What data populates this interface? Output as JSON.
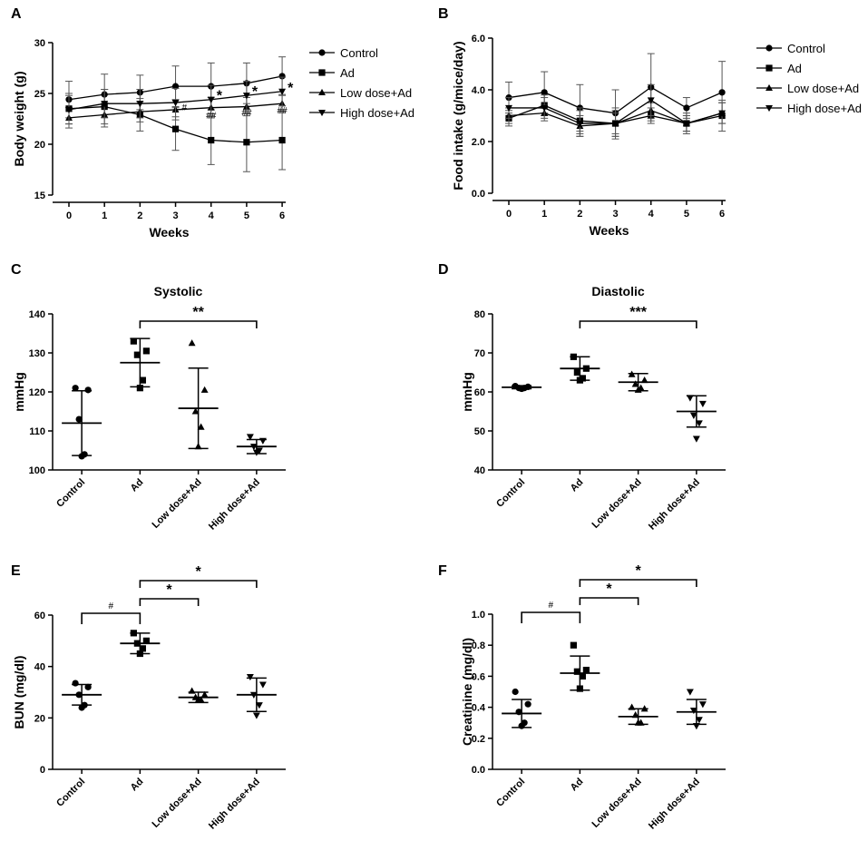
{
  "chart_data": [
    {
      "panel_label": "A",
      "type": "line",
      "title": "",
      "xlabel": "Weeks",
      "ylabel": "Body weight (g)",
      "x": [
        0,
        1,
        2,
        3,
        4,
        5,
        6
      ],
      "x_ticks": [
        "0",
        "1",
        "2",
        "3",
        "4",
        "5",
        "6"
      ],
      "y_ticks": [
        "15",
        "20",
        "25",
        "30"
      ],
      "ylim": [
        15,
        30
      ],
      "legend": "right",
      "series": [
        {
          "name": "Control",
          "marker": "circle",
          "values": [
            24.4,
            24.9,
            25.1,
            25.7,
            25.7,
            26.0,
            26.7
          ],
          "err": [
            1.8,
            2.0,
            1.7,
            2.0,
            2.3,
            2.0,
            1.9
          ]
        },
        {
          "name": "Ad",
          "marker": "square",
          "values": [
            23.5,
            23.7,
            22.9,
            21.5,
            20.4,
            20.2,
            20.4
          ],
          "err": [
            1.5,
            1.7,
            1.6,
            2.1,
            2.4,
            2.9,
            2.9
          ]
        },
        {
          "name": "Low dose+Ad",
          "marker": "triangle-up",
          "values": [
            22.6,
            22.9,
            23.2,
            23.4,
            23.6,
            23.7,
            24.0
          ],
          "err": [
            1.0,
            1.2,
            1.0,
            1.0,
            1.0,
            0.9,
            0.9
          ]
        },
        {
          "name": "High dose+Ad",
          "marker": "triangle-down",
          "values": [
            23.4,
            24.0,
            24.0,
            24.1,
            24.4,
            24.8,
            25.2
          ],
          "err": [
            1.4,
            1.4,
            1.4,
            1.4,
            1.4,
            1.4,
            1.4
          ]
        }
      ],
      "annotations": [
        {
          "x": 3,
          "series": "Ad",
          "text": "#"
        },
        {
          "x": 4,
          "series": "Ad",
          "text": "##"
        },
        {
          "x": 5,
          "series": "Ad",
          "text": "##"
        },
        {
          "x": 6,
          "series": "Ad",
          "text": "##"
        },
        {
          "x": 4,
          "series": "High dose+Ad",
          "text": "*"
        },
        {
          "x": 5,
          "series": "High dose+Ad",
          "text": "*"
        },
        {
          "x": 6,
          "series": "High dose+Ad",
          "text": "*"
        }
      ]
    },
    {
      "panel_label": "B",
      "type": "line",
      "title": "",
      "xlabel": "Weeks",
      "ylabel": "Food intake (g/mice/day)",
      "x": [
        0,
        1,
        2,
        3,
        4,
        5,
        6
      ],
      "x_ticks": [
        "0",
        "1",
        "2",
        "3",
        "4",
        "5",
        "6"
      ],
      "y_ticks": [
        "0.0",
        "2.0",
        "4.0",
        "6.0"
      ],
      "ylim": [
        0,
        6
      ],
      "legend": "right",
      "series": [
        {
          "name": "Control",
          "marker": "circle",
          "values": [
            3.7,
            3.9,
            3.3,
            3.1,
            4.1,
            3.3,
            3.9
          ],
          "err": [
            0.6,
            0.8,
            0.9,
            0.9,
            1.3,
            0.4,
            1.2
          ]
        },
        {
          "name": "Ad",
          "marker": "square",
          "values": [
            2.9,
            3.4,
            2.8,
            2.7,
            3.0,
            2.7,
            3.0
          ],
          "err": [
            0.3,
            0.4,
            0.5,
            0.6,
            0.3,
            0.3,
            0.6
          ]
        },
        {
          "name": "Low dose+Ad",
          "marker": "triangle-up",
          "values": [
            3.0,
            3.1,
            2.6,
            2.7,
            3.2,
            2.7,
            3.1
          ],
          "err": [
            0.3,
            0.3,
            0.4,
            0.4,
            0.3,
            0.3,
            0.4
          ]
        },
        {
          "name": "High dose+Ad",
          "marker": "triangle-down",
          "values": [
            3.3,
            3.3,
            2.7,
            2.7,
            3.6,
            2.7,
            3.1
          ],
          "err": [
            0.4,
            0.4,
            0.5,
            0.5,
            0.6,
            0.4,
            0.4
          ]
        }
      ]
    },
    {
      "panel_label": "C",
      "type": "scatter",
      "title": "Systolic",
      "xlabel": "",
      "ylabel": "mmHg",
      "categories": [
        "Control",
        "Ad",
        "Low dose+Ad",
        "High dose+Ad"
      ],
      "y_ticks": [
        "100",
        "110",
        "120",
        "130",
        "140"
      ],
      "ylim": [
        100,
        140
      ],
      "groups": [
        {
          "name": "Control",
          "marker": "circle",
          "points": [
            121,
            120.5,
            113,
            104,
            103.5
          ],
          "mean": 112,
          "sd": 8.3
        },
        {
          "name": "Ad",
          "marker": "square",
          "points": [
            133,
            130.5,
            129.5,
            123,
            121
          ],
          "mean": 127.5,
          "sd": 6.2
        },
        {
          "name": "Low dose+Ad",
          "marker": "triangle-up",
          "points": [
            132.5,
            120.5,
            115,
            111,
            106
          ],
          "mean": 115.8,
          "sd": 10.3
        },
        {
          "name": "High dose+Ad",
          "marker": "triangle-down",
          "points": [
            108.5,
            107.5,
            106,
            105,
            104.5
          ],
          "mean": 106,
          "sd": 1.8
        }
      ],
      "brackets": [
        {
          "from": "Ad",
          "to": "High dose+Ad",
          "text": "**"
        }
      ]
    },
    {
      "panel_label": "D",
      "type": "scatter",
      "title": "Diastolic",
      "xlabel": "",
      "ylabel": "mmHg",
      "categories": [
        "Control",
        "Ad",
        "Low dose+Ad",
        "High dose+Ad"
      ],
      "y_ticks": [
        "40",
        "50",
        "60",
        "70",
        "80"
      ],
      "ylim": [
        40,
        80
      ],
      "groups": [
        {
          "name": "Control",
          "marker": "circle",
          "points": [
            61.5,
            61.3,
            61,
            61,
            60.8
          ],
          "mean": 61.2,
          "sd": 0.4
        },
        {
          "name": "Ad",
          "marker": "square",
          "points": [
            69,
            66,
            65,
            63.5,
            63
          ],
          "mean": 66,
          "sd": 3
        },
        {
          "name": "Low dose+Ad",
          "marker": "triangle-up",
          "points": [
            64.5,
            63,
            62,
            61,
            60.5
          ],
          "mean": 62.5,
          "sd": 2.2
        },
        {
          "name": "High dose+Ad",
          "marker": "triangle-down",
          "points": [
            58.5,
            57,
            54,
            52,
            48
          ],
          "mean": 55,
          "sd": 4
        }
      ],
      "brackets": [
        {
          "from": "Ad",
          "to": "High dose+Ad",
          "text": "***"
        }
      ]
    },
    {
      "panel_label": "E",
      "type": "scatter",
      "title": "",
      "xlabel": "",
      "ylabel": "BUN (mg/dl)",
      "categories": [
        "Control",
        "Ad",
        "Low dose+Ad",
        "High dose+Ad"
      ],
      "y_ticks": [
        "0",
        "20",
        "40",
        "60"
      ],
      "ylim": [
        0,
        60
      ],
      "groups": [
        {
          "name": "Control",
          "marker": "circle",
          "points": [
            33.5,
            32,
            29,
            25,
            24
          ],
          "mean": 29,
          "sd": 4
        },
        {
          "name": "Ad",
          "marker": "square",
          "points": [
            53,
            50,
            49,
            47,
            45
          ],
          "mean": 49,
          "sd": 4
        },
        {
          "name": "Low dose+Ad",
          "marker": "triangle-up",
          "points": [
            30.5,
            29,
            28,
            27,
            27
          ],
          "mean": 28,
          "sd": 2
        },
        {
          "name": "High dose+Ad",
          "marker": "triangle-down",
          "points": [
            36,
            33,
            29,
            25,
            21
          ],
          "mean": 29,
          "sd": 6.5
        }
      ],
      "brackets": [
        {
          "from": "Control",
          "to": "Ad",
          "text": "#"
        },
        {
          "from": "Ad",
          "to": "Low dose+Ad",
          "text": "*"
        },
        {
          "from": "Ad",
          "to": "High dose+Ad",
          "text": "*"
        }
      ]
    },
    {
      "panel_label": "F",
      "type": "scatter",
      "title": "",
      "xlabel": "",
      "ylabel": "Creatinine (mg/dl)",
      "categories": [
        "Control",
        "Ad",
        "Low dose+Ad",
        "High dose+Ad"
      ],
      "y_ticks": [
        "0.0",
        "0.2",
        "0.4",
        "0.6",
        "0.8",
        "1.0"
      ],
      "ylim": [
        0,
        1.0
      ],
      "groups": [
        {
          "name": "Control",
          "marker": "circle",
          "points": [
            0.5,
            0.42,
            0.37,
            0.3,
            0.28
          ],
          "mean": 0.36,
          "sd": 0.09
        },
        {
          "name": "Ad",
          "marker": "square",
          "points": [
            0.8,
            0.64,
            0.63,
            0.6,
            0.52
          ],
          "mean": 0.62,
          "sd": 0.11
        },
        {
          "name": "Low dose+Ad",
          "marker": "triangle-up",
          "points": [
            0.4,
            0.39,
            0.35,
            0.3,
            0.3
          ],
          "mean": 0.34,
          "sd": 0.05
        },
        {
          "name": "High dose+Ad",
          "marker": "triangle-down",
          "points": [
            0.5,
            0.42,
            0.38,
            0.32,
            0.28
          ],
          "mean": 0.37,
          "sd": 0.08
        }
      ],
      "brackets": [
        {
          "from": "Control",
          "to": "Ad",
          "text": "#"
        },
        {
          "from": "Ad",
          "to": "Low dose+Ad",
          "text": "*"
        },
        {
          "from": "Ad",
          "to": "High dose+Ad",
          "text": "*"
        }
      ]
    }
  ]
}
